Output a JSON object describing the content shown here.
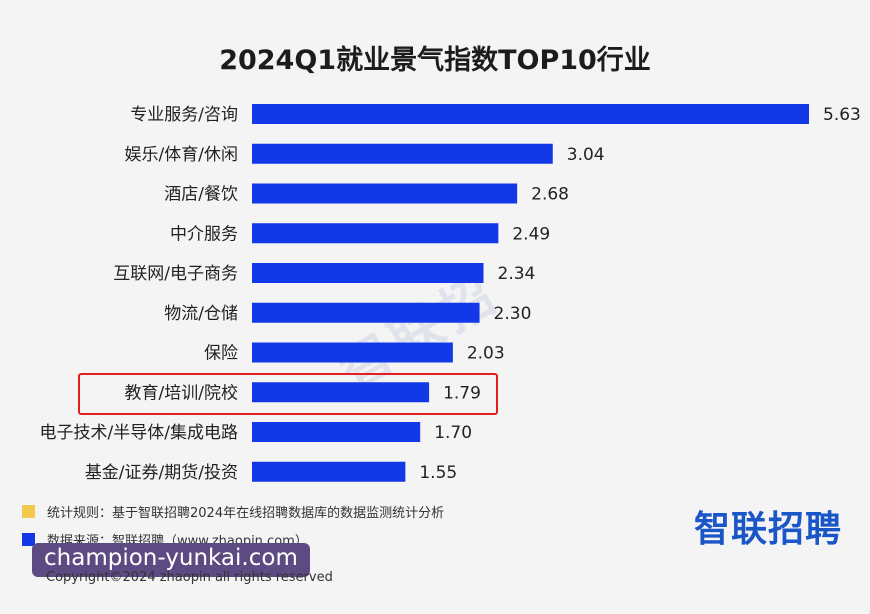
{
  "chart_data": {
    "type": "bar",
    "orientation": "horizontal",
    "title": "2024Q1就业景气指数TOP10行业",
    "categories": [
      "专业服务/咨询",
      "娱乐/体育/休闲",
      "酒店/餐饮",
      "中介服务",
      "互联网/电子商务",
      "物流/仓储",
      "保险",
      "教育/培训/院校",
      "电子技术/半导体/集成电路",
      "基金/证券/期货/投资"
    ],
    "values": [
      5.63,
      3.04,
      2.68,
      2.49,
      2.34,
      2.3,
      2.03,
      1.79,
      1.7,
      1.55
    ],
    "value_labels": [
      "5.63",
      "3.04",
      "2.68",
      "2.49",
      "2.34",
      "2.30",
      "2.03",
      "1.79",
      "1.70",
      "1.55"
    ],
    "xlim": [
      0,
      5.63
    ],
    "bar_color": "#1238e8",
    "highlighted_category": "教育/培训/院校",
    "highlight_color": "#e02020",
    "grid": false
  },
  "notes": {
    "rule_label": "统计规则：基于智联招聘2024年在线招聘数据库的数据监测统计分析",
    "rule_color": "#f2c94c",
    "source_label": "数据来源：智联招聘（www.zhaopin.com）",
    "source_color": "#1238e8"
  },
  "brand": {
    "logo_text": "智联招聘",
    "watermark_text": "智联招"
  },
  "overlay": {
    "site_text": "champion-yunkai.com"
  },
  "footer": {
    "copyright": "Copyright©2024 zhaopin all rights reserved"
  }
}
